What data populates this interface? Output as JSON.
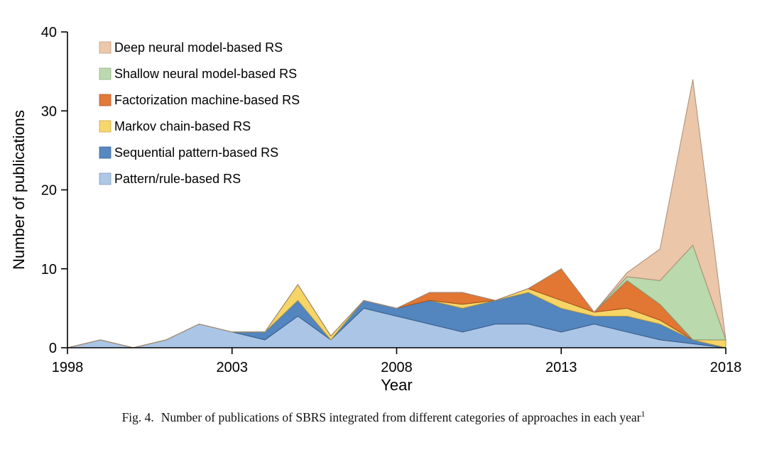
{
  "caption": {
    "label": "Fig. 4.",
    "text": "Number of publications of SBRS integrated from different categories of approaches in each year",
    "superscript": "1"
  },
  "chart_data": {
    "type": "area",
    "stacked": true,
    "title": "",
    "xlabel": "Year",
    "ylabel": "Number of publications",
    "xlim": [
      1998,
      2018
    ],
    "ylim": [
      0,
      40
    ],
    "xticks": [
      1998,
      2003,
      2008,
      2013,
      2018
    ],
    "yticks": [
      0,
      10,
      20,
      30,
      40
    ],
    "grid": false,
    "legend_position": "top-left-inside",
    "x": [
      1998,
      1999,
      2000,
      2001,
      2002,
      2003,
      2004,
      2005,
      2006,
      2007,
      2008,
      2009,
      2010,
      2011,
      2012,
      2013,
      2014,
      2015,
      2016,
      2017,
      2018
    ],
    "series": [
      {
        "id": "deep-neural",
        "name": "Deep neural model-based RS",
        "color": "#ebc3a4",
        "values": [
          0,
          0,
          0,
          0,
          0,
          0,
          0,
          0,
          0,
          0,
          0,
          0,
          0,
          0,
          0,
          0,
          0,
          0.5,
          4,
          21,
          0
        ]
      },
      {
        "id": "shallow-neural",
        "name": "Shallow neural model-based RS",
        "color": "#b6d7a8",
        "values": [
          0,
          0,
          0,
          0,
          0,
          0,
          0,
          0,
          0,
          0,
          0,
          0,
          0,
          0,
          0,
          0,
          0,
          0.5,
          3,
          12,
          0
        ]
      },
      {
        "id": "factorization-machine",
        "name": "Factorization machine-based RS",
        "color": "#e06f28",
        "values": [
          0,
          0,
          0,
          0,
          0,
          0,
          0,
          0,
          0,
          0,
          0,
          1,
          1.5,
          0,
          0,
          4,
          0,
          3.5,
          2,
          0,
          0
        ]
      },
      {
        "id": "markov-chain",
        "name": "Markov chain-based RS",
        "color": "#f6d35e",
        "values": [
          0,
          0,
          0,
          0,
          0,
          0,
          0,
          2,
          0.5,
          0,
          0,
          0,
          0.5,
          0,
          0.5,
          1,
          0.5,
          1,
          0.5,
          0,
          1
        ]
      },
      {
        "id": "sequential-pattern",
        "name": "Sequential pattern-based RS",
        "color": "#4a7ebb",
        "values": [
          0,
          0,
          0,
          0,
          0,
          0,
          1,
          2,
          0,
          1,
          1,
          3,
          3,
          3,
          4,
          3,
          1,
          2,
          2,
          0.5,
          0
        ]
      },
      {
        "id": "pattern-rule",
        "name": "Pattern/rule-based RS",
        "color": "#a7c2e5",
        "values": [
          0,
          1,
          0,
          1,
          3,
          2,
          1,
          4,
          1,
          5,
          4,
          3,
          2,
          3,
          3,
          2,
          3,
          2,
          1,
          0.5,
          0
        ]
      }
    ]
  }
}
